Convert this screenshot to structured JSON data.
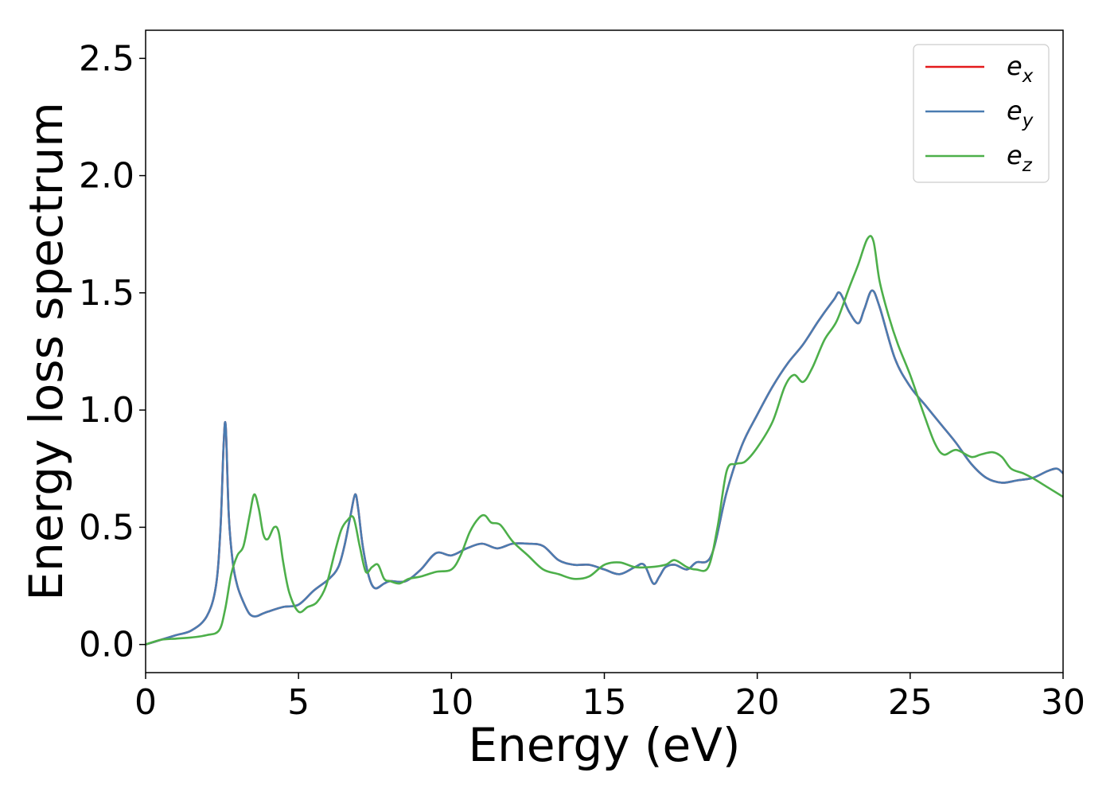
{
  "chart_data": {
    "type": "line",
    "title": "",
    "xlabel": "Energy (eV)",
    "ylabel": "Energy loss spectrum",
    "xlim": [
      0,
      30
    ],
    "ylim": [
      -0.12,
      2.62
    ],
    "xticks": [
      0,
      5,
      10,
      15,
      20,
      25,
      30
    ],
    "yticks": [
      0.0,
      0.5,
      1.0,
      1.5,
      2.0,
      2.5
    ],
    "xtick_labels": [
      "0",
      "5",
      "10",
      "15",
      "20",
      "25",
      "30"
    ],
    "ytick_labels": [
      "0.0",
      "0.5",
      "1.0",
      "1.5",
      "2.0",
      "2.5"
    ],
    "grid": false,
    "legend_position": "top-right",
    "series": [
      {
        "name": "ex",
        "legend_base": "e",
        "legend_sub": "x",
        "color": "#e41a1c",
        "x": [
          0,
          0.5,
          1.0,
          1.5,
          2.0,
          2.3,
          2.45,
          2.55,
          2.62,
          2.72,
          2.85,
          3.0,
          3.2,
          3.4,
          3.6,
          3.8,
          4.0,
          4.5,
          5.0,
          5.5,
          6.0,
          6.3,
          6.5,
          6.7,
          6.85,
          6.95,
          7.1,
          7.3,
          7.5,
          7.8,
          8.0,
          8.5,
          9.0,
          9.5,
          10.0,
          10.5,
          11.0,
          11.5,
          12.0,
          12.5,
          13.0,
          13.5,
          14.0,
          14.5,
          15.0,
          15.5,
          16.0,
          16.3,
          16.6,
          16.8,
          17.0,
          17.3,
          17.7,
          18.0,
          18.5,
          19.0,
          19.5,
          20.0,
          20.5,
          21.0,
          21.5,
          22.0,
          22.5,
          22.7,
          23.0,
          23.3,
          23.5,
          23.75,
          24.0,
          24.5,
          25.0,
          25.5,
          26.0,
          26.5,
          27.0,
          27.5,
          28.0,
          28.5,
          29.0,
          29.5,
          29.8,
          30.0
        ],
        "y": [
          0.0,
          0.02,
          0.04,
          0.06,
          0.12,
          0.25,
          0.5,
          0.85,
          0.93,
          0.55,
          0.35,
          0.25,
          0.18,
          0.13,
          0.12,
          0.13,
          0.14,
          0.16,
          0.17,
          0.23,
          0.28,
          0.33,
          0.42,
          0.55,
          0.64,
          0.58,
          0.42,
          0.29,
          0.24,
          0.26,
          0.27,
          0.27,
          0.32,
          0.39,
          0.38,
          0.41,
          0.43,
          0.41,
          0.43,
          0.43,
          0.42,
          0.36,
          0.34,
          0.34,
          0.32,
          0.3,
          0.33,
          0.34,
          0.26,
          0.29,
          0.33,
          0.34,
          0.32,
          0.35,
          0.38,
          0.65,
          0.85,
          0.98,
          1.1,
          1.2,
          1.28,
          1.38,
          1.47,
          1.5,
          1.42,
          1.37,
          1.43,
          1.51,
          1.44,
          1.22,
          1.1,
          1.02,
          0.94,
          0.86,
          0.77,
          0.71,
          0.69,
          0.7,
          0.71,
          0.74,
          0.75,
          0.73
        ]
      },
      {
        "name": "ey",
        "legend_base": "e",
        "legend_sub": "y",
        "color": "#4a7cb1",
        "x": [
          0,
          0.5,
          1.0,
          1.5,
          2.0,
          2.3,
          2.45,
          2.55,
          2.62,
          2.72,
          2.85,
          3.0,
          3.2,
          3.4,
          3.6,
          3.8,
          4.0,
          4.5,
          5.0,
          5.5,
          6.0,
          6.3,
          6.5,
          6.7,
          6.85,
          6.95,
          7.1,
          7.3,
          7.5,
          7.8,
          8.0,
          8.5,
          9.0,
          9.5,
          10.0,
          10.5,
          11.0,
          11.5,
          12.0,
          12.5,
          13.0,
          13.5,
          14.0,
          14.5,
          15.0,
          15.5,
          16.0,
          16.3,
          16.6,
          16.8,
          17.0,
          17.3,
          17.7,
          18.0,
          18.5,
          19.0,
          19.5,
          20.0,
          20.5,
          21.0,
          21.5,
          22.0,
          22.5,
          22.7,
          23.0,
          23.3,
          23.5,
          23.75,
          24.0,
          24.5,
          25.0,
          25.5,
          26.0,
          26.5,
          27.0,
          27.5,
          28.0,
          28.5,
          29.0,
          29.5,
          29.8,
          30.0
        ],
        "y": [
          0.0,
          0.02,
          0.04,
          0.06,
          0.12,
          0.25,
          0.5,
          0.85,
          0.93,
          0.55,
          0.35,
          0.25,
          0.18,
          0.13,
          0.12,
          0.13,
          0.14,
          0.16,
          0.17,
          0.23,
          0.28,
          0.33,
          0.42,
          0.55,
          0.64,
          0.58,
          0.42,
          0.29,
          0.24,
          0.26,
          0.27,
          0.27,
          0.32,
          0.39,
          0.38,
          0.41,
          0.43,
          0.41,
          0.43,
          0.43,
          0.42,
          0.36,
          0.34,
          0.34,
          0.32,
          0.3,
          0.33,
          0.34,
          0.26,
          0.29,
          0.33,
          0.34,
          0.32,
          0.35,
          0.38,
          0.65,
          0.85,
          0.98,
          1.1,
          1.2,
          1.28,
          1.38,
          1.47,
          1.5,
          1.42,
          1.37,
          1.43,
          1.51,
          1.44,
          1.22,
          1.1,
          1.02,
          0.94,
          0.86,
          0.77,
          0.71,
          0.69,
          0.7,
          0.71,
          0.74,
          0.75,
          0.73
        ]
      },
      {
        "name": "ez",
        "legend_base": "e",
        "legend_sub": "z",
        "color": "#4daf4a",
        "x": [
          0,
          0.5,
          1.0,
          1.5,
          2.0,
          2.4,
          2.6,
          2.8,
          3.0,
          3.2,
          3.4,
          3.55,
          3.7,
          3.85,
          4.0,
          4.2,
          4.35,
          4.5,
          4.7,
          5.0,
          5.3,
          5.6,
          5.9,
          6.2,
          6.4,
          6.6,
          6.8,
          7.0,
          7.2,
          7.4,
          7.6,
          7.8,
          8.0,
          8.3,
          8.6,
          9.0,
          9.5,
          10.0,
          10.3,
          10.6,
          10.9,
          11.1,
          11.3,
          11.6,
          12.0,
          12.5,
          13.0,
          13.5,
          14.0,
          14.5,
          15.0,
          15.5,
          16.0,
          16.5,
          17.0,
          17.3,
          17.7,
          18.0,
          18.4,
          18.7,
          19.0,
          19.3,
          19.6,
          20.0,
          20.5,
          20.9,
          21.2,
          21.5,
          21.8,
          22.2,
          22.6,
          23.0,
          23.3,
          23.6,
          23.8,
          24.0,
          24.3,
          24.6,
          25.0,
          25.4,
          25.8,
          26.1,
          26.5,
          27.0,
          27.3,
          27.7,
          28.0,
          28.3,
          28.7,
          29.0,
          29.5,
          30.0
        ],
        "y": [
          0.0,
          0.02,
          0.025,
          0.03,
          0.04,
          0.06,
          0.15,
          0.3,
          0.38,
          0.42,
          0.55,
          0.64,
          0.58,
          0.47,
          0.45,
          0.5,
          0.48,
          0.35,
          0.22,
          0.14,
          0.16,
          0.18,
          0.25,
          0.4,
          0.49,
          0.53,
          0.54,
          0.42,
          0.31,
          0.33,
          0.34,
          0.28,
          0.27,
          0.26,
          0.28,
          0.29,
          0.31,
          0.32,
          0.38,
          0.48,
          0.54,
          0.55,
          0.52,
          0.51,
          0.44,
          0.38,
          0.32,
          0.3,
          0.28,
          0.29,
          0.34,
          0.35,
          0.33,
          0.33,
          0.34,
          0.36,
          0.33,
          0.32,
          0.33,
          0.5,
          0.74,
          0.77,
          0.78,
          0.84,
          0.95,
          1.1,
          1.15,
          1.12,
          1.18,
          1.3,
          1.38,
          1.52,
          1.62,
          1.73,
          1.72,
          1.55,
          1.4,
          1.28,
          1.15,
          1.0,
          0.86,
          0.81,
          0.83,
          0.8,
          0.81,
          0.82,
          0.8,
          0.75,
          0.73,
          0.71,
          0.67,
          0.63
        ]
      }
    ]
  }
}
